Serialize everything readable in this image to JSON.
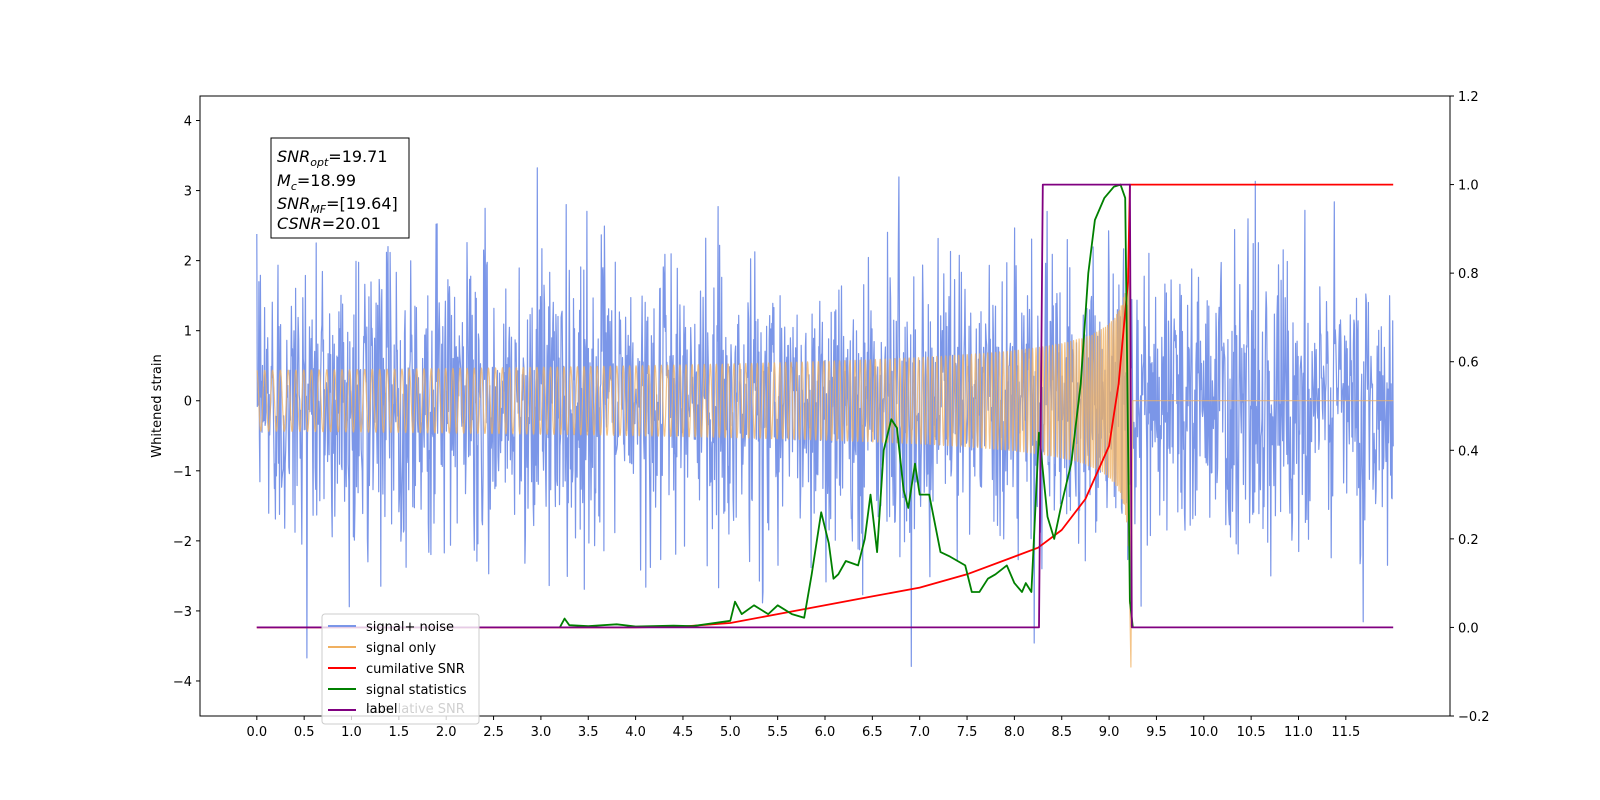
{
  "chart_data": {
    "type": "line",
    "title": "",
    "xlabel": "",
    "ylabel": "Whitened strain",
    "xlim": [
      -0.6,
      12.6
    ],
    "ylim": [
      -4.5,
      4.35
    ],
    "y2lim": [
      -0.2,
      1.2
    ],
    "x_ticks": [
      "0.0",
      "0.5",
      "1.0",
      "1.5",
      "2.0",
      "2.5",
      "3.0",
      "3.5",
      "4.0",
      "4.5",
      "5.0",
      "5.5",
      "6.0",
      "6.5",
      "7.0",
      "7.5",
      "8.0",
      "8.5",
      "9.0",
      "9.5",
      "10.0",
      "10.5",
      "11.0",
      "11.5"
    ],
    "y_ticks": [
      "4",
      "3",
      "2",
      "1",
      "0",
      "−1",
      "−2",
      "−3",
      "−4"
    ],
    "y2_ticks": [
      "1.2",
      "1.0",
      "0.8",
      "0.6",
      "0.4",
      "0.2",
      "0.0",
      "−0.2"
    ],
    "annotation": {
      "snr_opt_sym": "SNR",
      "snr_opt_sub": "opt",
      "snr_opt_val": "=19.71",
      "mc_sym": "M",
      "mc_sub": "c",
      "mc_val": "=18.99",
      "snr_mf_sym": "SNR",
      "snr_mf_sub": "MF",
      "snr_mf_val": "=[19.64]",
      "csnr_sym": "CSNR",
      "csnr_val": "=20.01"
    },
    "legend": {
      "position": "lower-left",
      "entries": [
        "signal+ noise",
        "signal only",
        "cumilative SNR",
        "signal statistics",
        "label"
      ],
      "ghost_text": "cumilative SNR"
    },
    "series": [
      {
        "name": "signal+ noise",
        "axis": "left",
        "color": "#7b96e8",
        "kind": "noise",
        "x_range": [
          0.0,
          12.0
        ],
        "std": 0.95
      },
      {
        "name": "signal only",
        "axis": "left",
        "color": "#f0b060",
        "kind": "chirp",
        "x_range": [
          0.0,
          9.22
        ],
        "merger": 9.22,
        "amp_at_merger": 3.0
      },
      {
        "name": "cumilative SNR",
        "axis": "right",
        "color": "#ff0000",
        "points": [
          [
            0,
            0
          ],
          [
            3.0,
            0
          ],
          [
            4.0,
            0
          ],
          [
            4.5,
            0.002
          ],
          [
            5.0,
            0.01
          ],
          [
            5.5,
            0.03
          ],
          [
            6.0,
            0.05
          ],
          [
            6.5,
            0.07
          ],
          [
            7.0,
            0.09
          ],
          [
            7.5,
            0.12
          ],
          [
            8.0,
            0.16
          ],
          [
            8.25,
            0.18
          ],
          [
            8.5,
            0.22
          ],
          [
            8.75,
            0.29
          ],
          [
            9.0,
            0.41
          ],
          [
            9.1,
            0.55
          ],
          [
            9.2,
            0.78
          ],
          [
            9.22,
            1.0
          ],
          [
            12.0,
            1.0
          ]
        ]
      },
      {
        "name": "signal statistics",
        "axis": "right",
        "color": "#008000",
        "points": [
          [
            3.2,
            0
          ],
          [
            3.25,
            0.02
          ],
          [
            3.3,
            0.005
          ],
          [
            3.5,
            0.003
          ],
          [
            3.8,
            0.007
          ],
          [
            4.0,
            0.002
          ],
          [
            4.4,
            0.004
          ],
          [
            4.6,
            0.003
          ],
          [
            5.0,
            0.015
          ],
          [
            5.05,
            0.058
          ],
          [
            5.12,
            0.03
          ],
          [
            5.25,
            0.05
          ],
          [
            5.4,
            0.03
          ],
          [
            5.5,
            0.05
          ],
          [
            5.65,
            0.03
          ],
          [
            5.78,
            0.022
          ],
          [
            5.86,
            0.12
          ],
          [
            5.96,
            0.26
          ],
          [
            6.04,
            0.19
          ],
          [
            6.09,
            0.11
          ],
          [
            6.14,
            0.12
          ],
          [
            6.22,
            0.15
          ],
          [
            6.35,
            0.14
          ],
          [
            6.42,
            0.2
          ],
          [
            6.48,
            0.3
          ],
          [
            6.55,
            0.17
          ],
          [
            6.62,
            0.4
          ],
          [
            6.7,
            0.47
          ],
          [
            6.76,
            0.45
          ],
          [
            6.83,
            0.31
          ],
          [
            6.88,
            0.27
          ],
          [
            6.95,
            0.37
          ],
          [
            7.0,
            0.3
          ],
          [
            7.1,
            0.3
          ],
          [
            7.22,
            0.17
          ],
          [
            7.32,
            0.16
          ],
          [
            7.4,
            0.15
          ],
          [
            7.48,
            0.14
          ],
          [
            7.55,
            0.08
          ],
          [
            7.63,
            0.08
          ],
          [
            7.72,
            0.11
          ],
          [
            7.8,
            0.12
          ],
          [
            7.92,
            0.14
          ],
          [
            8.0,
            0.1
          ],
          [
            8.08,
            0.08
          ],
          [
            8.12,
            0.1
          ],
          [
            8.18,
            0.08
          ],
          [
            8.26,
            0.44
          ],
          [
            8.35,
            0.25
          ],
          [
            8.42,
            0.2
          ],
          [
            8.5,
            0.28
          ],
          [
            8.6,
            0.37
          ],
          [
            8.7,
            0.55
          ],
          [
            8.78,
            0.8
          ],
          [
            8.85,
            0.92
          ],
          [
            8.95,
            0.97
          ],
          [
            9.05,
            0.995
          ],
          [
            9.12,
            1.0
          ],
          [
            9.17,
            0.97
          ],
          [
            9.22,
            0.06
          ],
          [
            9.25,
            0.0
          ]
        ]
      },
      {
        "name": "label",
        "axis": "right",
        "color": "#800080",
        "points": [
          [
            0,
            0
          ],
          [
            8.26,
            0
          ],
          [
            8.3,
            1.0
          ],
          [
            9.22,
            1.0
          ],
          [
            9.24,
            0
          ],
          [
            12.0,
            0
          ]
        ]
      }
    ]
  }
}
